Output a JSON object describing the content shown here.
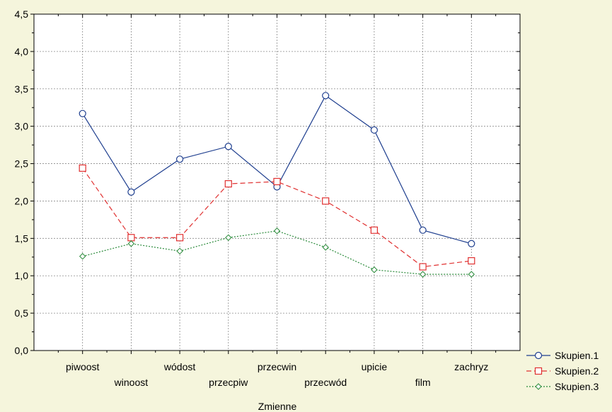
{
  "chart_data": {
    "type": "line",
    "title": "",
    "xlabel": "Zmienne",
    "ylabel": "",
    "ylim": [
      0,
      4.5
    ],
    "y_ticks": [
      "0,0",
      "0,5",
      "1,0",
      "1,5",
      "2,0",
      "2,5",
      "3,0",
      "3,5",
      "4,0",
      "4,5"
    ],
    "grid": true,
    "legend_position": "bottom-right",
    "categories": [
      "piwoost",
      "winoost",
      "wódost",
      "przecpiw",
      "przecwin",
      "przecwód",
      "upicie",
      "film",
      "zachryz"
    ],
    "series": [
      {
        "name": "Skupien.1",
        "color": "#1f3f8f",
        "marker": "circle",
        "dash": "solid",
        "values": [
          3.17,
          2.12,
          2.56,
          2.73,
          2.19,
          3.41,
          2.95,
          1.61,
          1.43
        ]
      },
      {
        "name": "Skupien.2",
        "color": "#e03030",
        "marker": "square",
        "dash": "dashed",
        "values": [
          2.44,
          1.51,
          1.51,
          2.23,
          2.26,
          2.0,
          1.61,
          1.12,
          1.2
        ]
      },
      {
        "name": "Skupien.3",
        "color": "#2a8a3a",
        "marker": "diamond",
        "dash": "dotted",
        "values": [
          1.26,
          1.43,
          1.33,
          1.51,
          1.6,
          1.38,
          1.08,
          1.02,
          1.02
        ]
      }
    ]
  }
}
